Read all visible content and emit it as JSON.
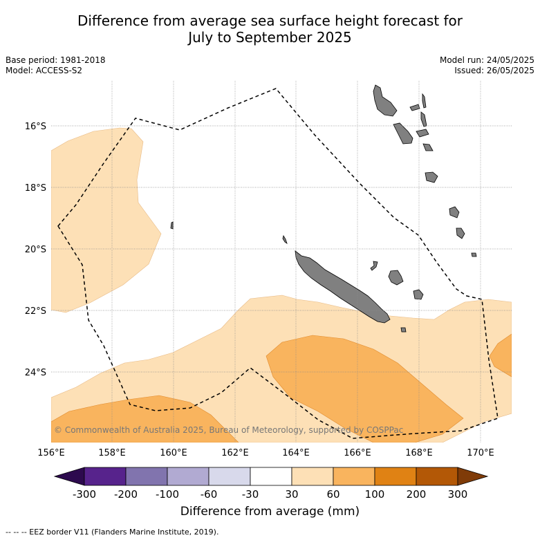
{
  "title_line1": "Difference from average sea surface height forecast for",
  "title_line2": "July to September 2025",
  "base_period": "Base period: 1981-2018",
  "model": "Model: ACCESS-S2",
  "model_run": "Model run: 24/05/2025",
  "issued": "Issued: 26/05/2025",
  "copyright": "© Commonwealth of Australia 2025, Bureau of Meteorology, supported by COSPPac",
  "lon_labels": [
    "156°E",
    "158°E",
    "160°E",
    "162°E",
    "164°E",
    "166°E",
    "168°E",
    "170°E"
  ],
  "lat_labels": [
    "16°S",
    "18°S",
    "20°S",
    "22°S",
    "24°S"
  ],
  "colorbar": {
    "title": "Difference from average (mm)",
    "ticks": [
      "-300",
      "-200",
      "-100",
      "-60",
      "-30",
      "30",
      "60",
      "100",
      "200",
      "300"
    ],
    "colors": [
      "#2d0a4e",
      "#57238c",
      "#8174ae",
      "#b1aad2",
      "#d8d9eb",
      "#ffffff",
      "#fde0b6",
      "#f9b45e",
      "#e08214",
      "#b35806",
      "#7f3b08"
    ]
  },
  "legend_footer": "--  --  -- EEZ border V11 (Flanders Marine Institute, 2019).",
  "map_colors": {
    "band_30_60": "#fde0b6",
    "band_60_100": "#f9b45e",
    "land": "#808080",
    "eez": "#000000"
  }
}
